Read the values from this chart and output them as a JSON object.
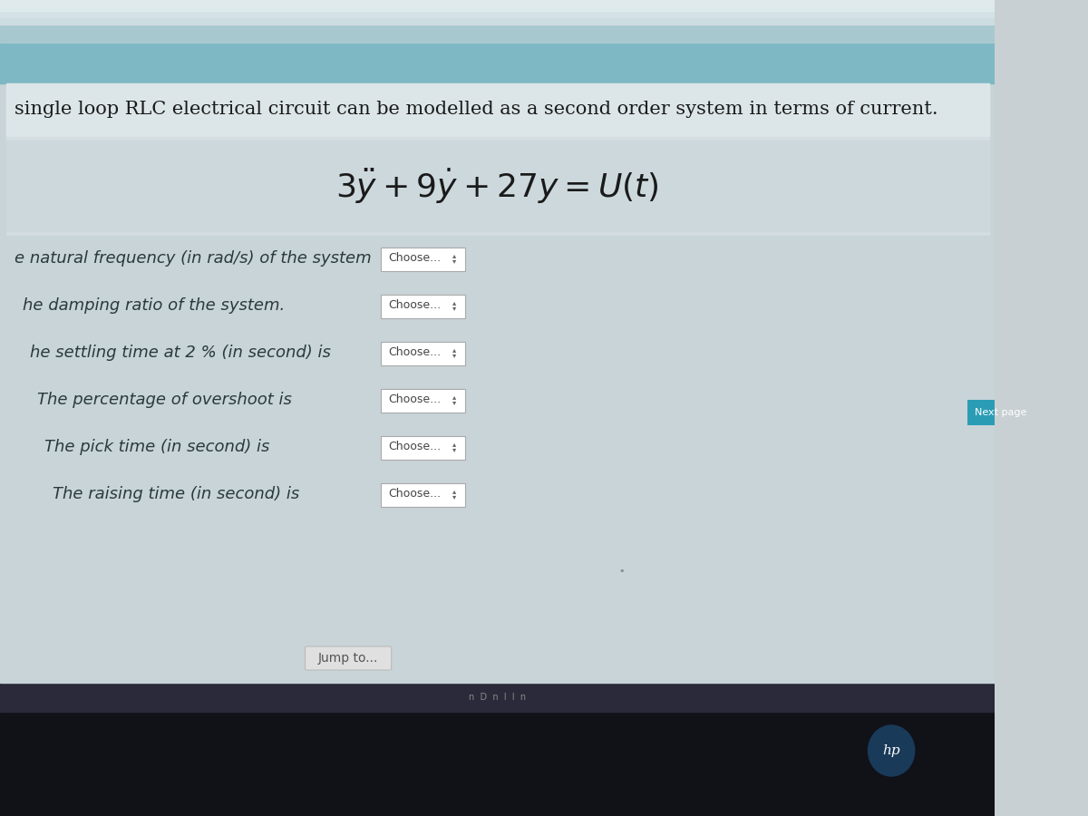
{
  "bg_color": "#c8d0d4",
  "header_bar_color": "#7eb8c4",
  "top_bar_color": "#a8c8d0",
  "screen_bg": "#c8d4d8",
  "title_text": "single loop RLC electrical circuit can be modelled as a second order system in terms of current.",
  "questions": [
    "e natural frequency (in rad/s) of the system",
    "he damping ratio of the system.",
    "he settling time at 2 % (in second) is",
    "The percentage of overshoot is",
    "The pick time (in second) is",
    "The raising time (in second) is"
  ],
  "choose_label": "Choose...",
  "next_page_text": "Next page",
  "jump_to_text": "Jump to...",
  "title_fontsize": 15,
  "question_fontsize": 13,
  "choose_fontsize": 9,
  "next_page_color": "#2a9db5",
  "choose_box_color": "#ffffff",
  "choose_box_border": "#aaaaaa",
  "jump_to_bg": "#e0e0e0",
  "dark_bottom_color": "#111118",
  "taskbar_color": "#2a2a3a"
}
